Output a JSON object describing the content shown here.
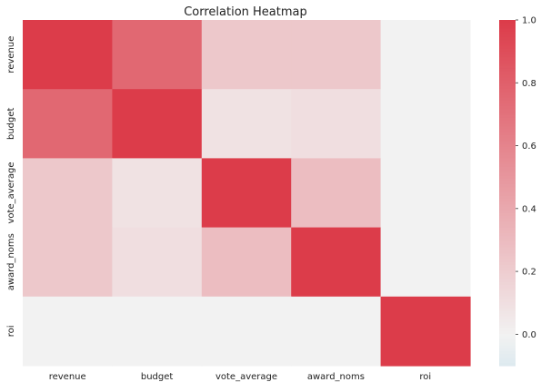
{
  "chart_data": {
    "type": "heatmap",
    "title": "Correlation Heatmap",
    "x_categories": [
      "revenue",
      "budget",
      "vote_average",
      "award_noms",
      "roi"
    ],
    "y_categories": [
      "revenue",
      "budget",
      "vote_average",
      "award_noms",
      "roi"
    ],
    "values": [
      [
        1.0,
        0.76,
        0.23,
        0.23,
        0.0
      ],
      [
        0.76,
        1.0,
        0.09,
        0.11,
        0.0
      ],
      [
        0.23,
        0.09,
        1.0,
        0.29,
        0.0
      ],
      [
        0.23,
        0.11,
        0.29,
        1.0,
        0.0
      ],
      [
        0.0,
        0.0,
        0.0,
        0.0,
        1.0
      ]
    ],
    "colorbar": {
      "range": [
        -0.1,
        1.0
      ],
      "ticks": [
        "1.0",
        "0.8",
        "0.6",
        "0.4",
        "0.2",
        "0.0"
      ],
      "tick_values": [
        1.0,
        0.8,
        0.6,
        0.4,
        0.2,
        0.0
      ],
      "color_low": "#dce9ef",
      "color_mid": "#f2f2f2",
      "color_high": "#dc3c4a",
      "mid_value": 0.0
    },
    "grid": false,
    "legend": "colorbar-right"
  }
}
